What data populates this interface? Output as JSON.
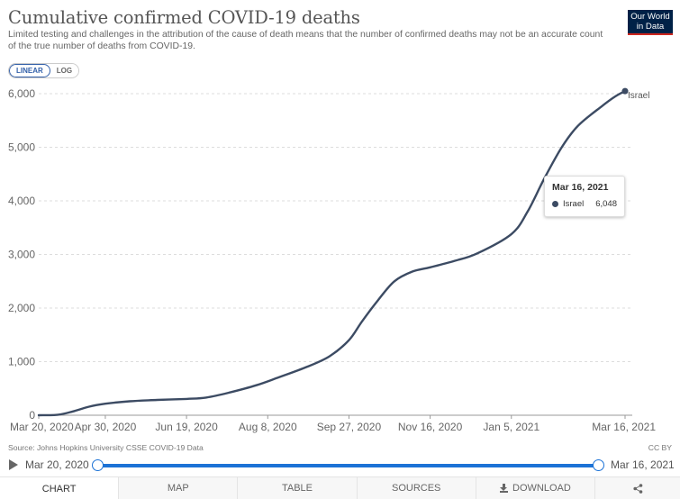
{
  "header": {
    "title": "Cumulative confirmed COVID-19 deaths",
    "subtitle": "Limited testing and challenges in the attribution of the cause of death means that the number of confirmed deaths may not be an accurate count of the true number of deaths from COVID-19.",
    "logo_line1": "Our World",
    "logo_line2": "in Data"
  },
  "scale_toggle": {
    "linear_label": "LINEAR",
    "log_label": "LOG",
    "selected": "LINEAR"
  },
  "chart_data": {
    "type": "line",
    "ylim": [
      0,
      6000
    ],
    "y_ticks": [
      0,
      1000,
      2000,
      3000,
      4000,
      5000,
      6000
    ],
    "y_tick_labels": [
      "0",
      "1,000",
      "2,000",
      "3,000",
      "4,000",
      "5,000",
      "6,000"
    ],
    "x_range": [
      "2020-03-20",
      "2021-03-16"
    ],
    "x_ticks": [
      "2020-03-20",
      "2020-04-30",
      "2020-06-19",
      "2020-08-08",
      "2020-09-27",
      "2020-11-16",
      "2021-01-05",
      "2021-03-16"
    ],
    "x_tick_labels": [
      "Mar 20, 2020",
      "Apr 30, 2020",
      "Jun 19, 2020",
      "Aug 8, 2020",
      "Sep 27, 2020",
      "Nov 16, 2020",
      "Jan 5, 2021",
      "Mar 16, 2021"
    ],
    "grid": "horizontal dashed",
    "series": [
      {
        "name": "Israel",
        "color": "#3c4b63",
        "points": [
          [
            "2020-03-20",
            0
          ],
          [
            "2020-04-01",
            10
          ],
          [
            "2020-04-10",
            70
          ],
          [
            "2020-04-20",
            160
          ],
          [
            "2020-04-30",
            215
          ],
          [
            "2020-05-15",
            260
          ],
          [
            "2020-06-01",
            285
          ],
          [
            "2020-06-19",
            305
          ],
          [
            "2020-07-01",
            330
          ],
          [
            "2020-07-15",
            420
          ],
          [
            "2020-08-01",
            560
          ],
          [
            "2020-08-15",
            710
          ],
          [
            "2020-09-01",
            900
          ],
          [
            "2020-09-15",
            1100
          ],
          [
            "2020-09-27",
            1400
          ],
          [
            "2020-10-05",
            1750
          ],
          [
            "2020-10-15",
            2150
          ],
          [
            "2020-10-25",
            2500
          ],
          [
            "2020-11-05",
            2680
          ],
          [
            "2020-11-16",
            2760
          ],
          [
            "2020-12-01",
            2880
          ],
          [
            "2020-12-15",
            3020
          ],
          [
            "2021-01-05",
            3380
          ],
          [
            "2021-01-15",
            3800
          ],
          [
            "2021-01-25",
            4400
          ],
          [
            "2021-02-05",
            5000
          ],
          [
            "2021-02-15",
            5400
          ],
          [
            "2021-03-01",
            5750
          ],
          [
            "2021-03-10",
            5950
          ],
          [
            "2021-03-16",
            6048
          ]
        ]
      }
    ]
  },
  "tooltip": {
    "date": "Mar 16, 2021",
    "series_name": "Israel",
    "value": "6,048"
  },
  "footer": {
    "source": "Source: Johns Hopkins University CSSE COVID-19 Data",
    "license": "CC BY"
  },
  "timeline": {
    "start_label": "Mar 20, 2020",
    "end_label": "Mar 16, 2021"
  },
  "tabs": [
    {
      "label": "CHART"
    },
    {
      "label": "MAP"
    },
    {
      "label": "TABLE"
    },
    {
      "label": "SOURCES"
    },
    {
      "label": "DOWNLOAD"
    }
  ]
}
